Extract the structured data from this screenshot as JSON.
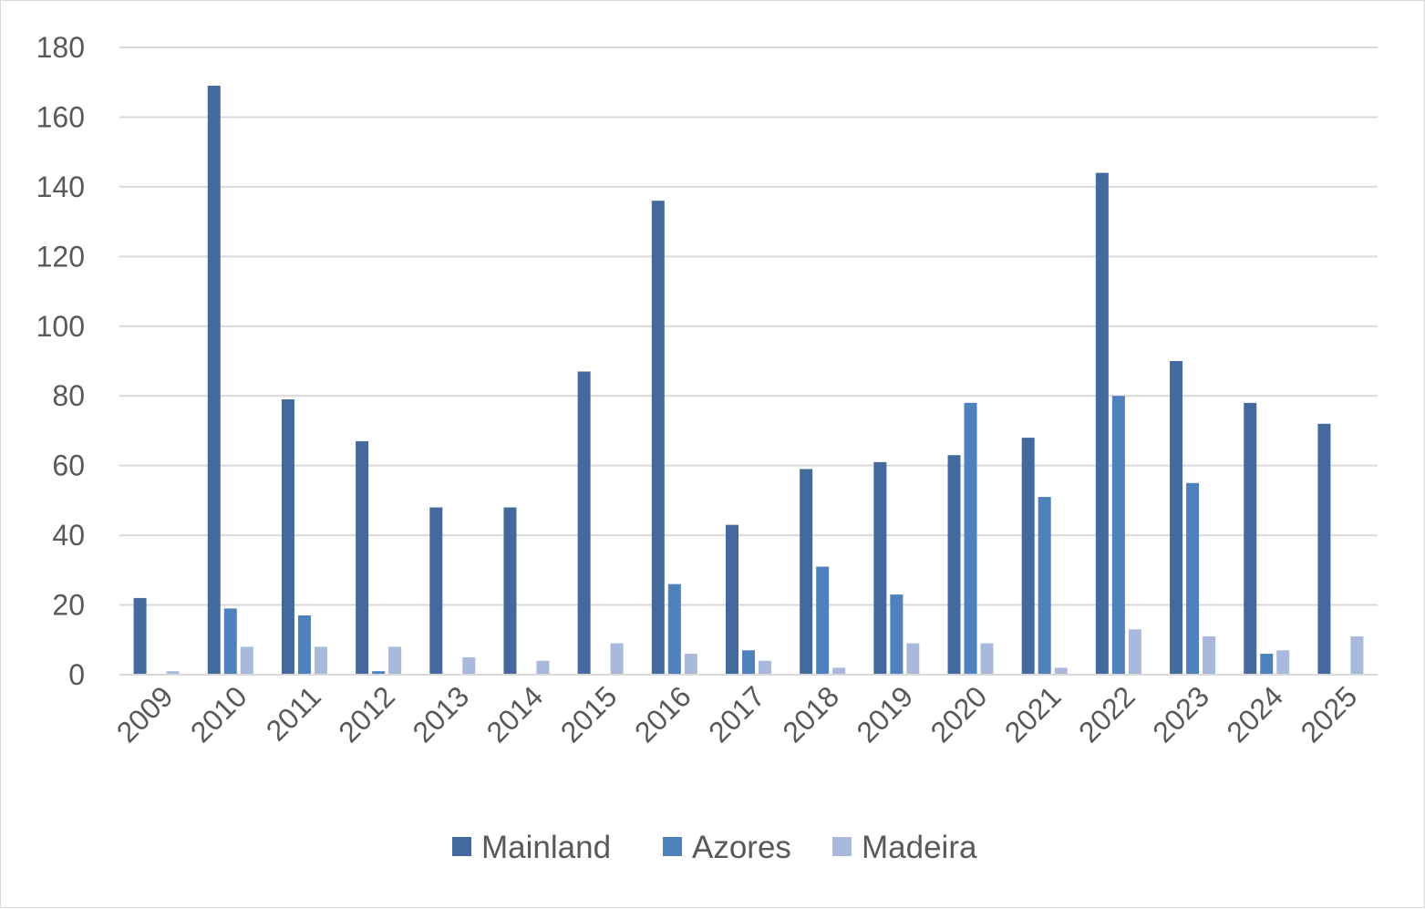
{
  "chart_data": {
    "type": "bar",
    "categories": [
      "2009",
      "2010",
      "2011",
      "2012",
      "2013",
      "2014",
      "2015",
      "2016",
      "2017",
      "2018",
      "2019",
      "2020",
      "2021",
      "2022",
      "2023",
      "2024",
      "2025"
    ],
    "series": [
      {
        "name": "Mainland",
        "color": "#44699d",
        "values": [
          22,
          169,
          79,
          67,
          48,
          48,
          87,
          136,
          43,
          59,
          61,
          63,
          68,
          144,
          90,
          78,
          72
        ]
      },
      {
        "name": "Azores",
        "color": "#4f81bd",
        "values": [
          0,
          19,
          17,
          1,
          0,
          0,
          0,
          26,
          7,
          31,
          23,
          78,
          51,
          80,
          55,
          6,
          0
        ]
      },
      {
        "name": "Madeira",
        "color": "#a9b9db",
        "values": [
          1,
          8,
          8,
          8,
          5,
          4,
          9,
          6,
          4,
          2,
          9,
          9,
          2,
          13,
          11,
          7,
          11
        ]
      }
    ],
    "y_ticks": [
      "0",
      "20",
      "40",
      "60",
      "80",
      "100",
      "120",
      "140",
      "160",
      "180"
    ],
    "ylim": [
      0,
      180
    ],
    "grid": true,
    "legend_position": "bottom"
  }
}
